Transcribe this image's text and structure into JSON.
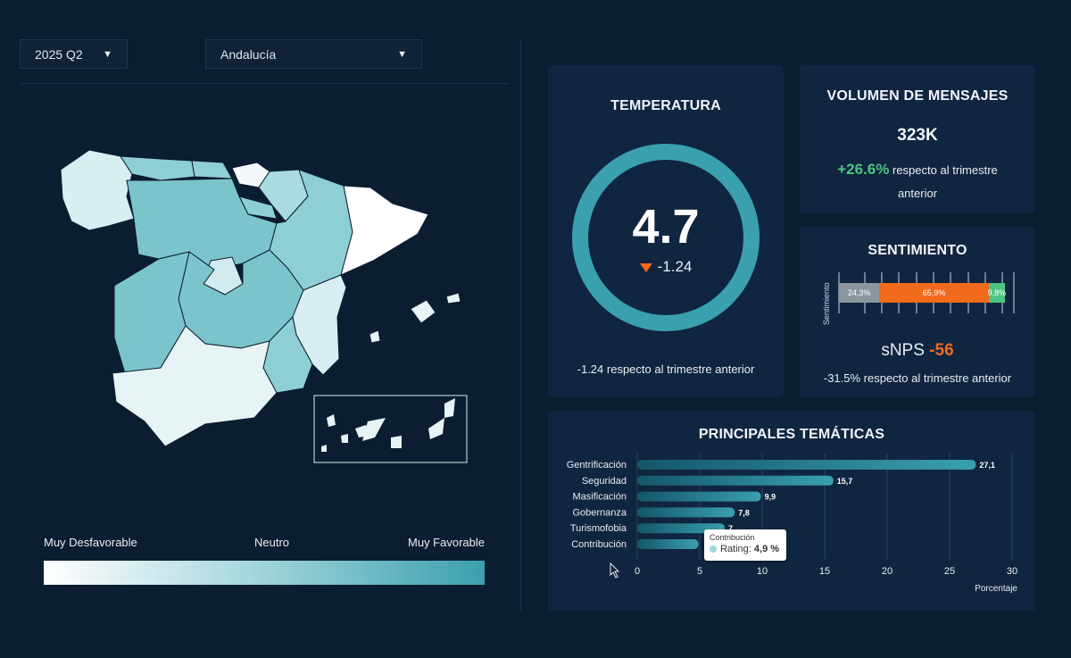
{
  "filters": {
    "quarter": "2025 Q2",
    "region": "Andalucía"
  },
  "legend": {
    "low": "Muy Desfavorable",
    "mid": "Neutro",
    "high": "Muy Favorable"
  },
  "temperatura": {
    "title": "TEMPERATURA",
    "value": "4.7",
    "delta": "-1.24",
    "note": "-1.24 respecto al trimestre anterior"
  },
  "volumen": {
    "title": "VOLUMEN DE MENSAJES",
    "value": "323K",
    "change": "+26.6%",
    "note_line1": "respecto al trimestre",
    "note_line2": "anterior"
  },
  "sentimiento": {
    "title": "SENTIMIENTO",
    "axis_label": "Sentimiento",
    "segments": [
      {
        "label": "24,3%",
        "value": 24.3,
        "color": "#8d969e"
      },
      {
        "label": "65,9%",
        "value": 65.9,
        "color": "#f26a1b"
      },
      {
        "label": "9,8%",
        "value": 9.8,
        "color": "#4bc584"
      }
    ],
    "snps_label": "sNPS",
    "snps_value": "-56",
    "note": "-31.5% respecto al trimestre anterior"
  },
  "tematicas": {
    "title": "PRINCIPALES TEMÁTICAS",
    "tooltip_title": "Contribución",
    "tooltip_label": "Rating:",
    "tooltip_value": "4,9 %"
  },
  "chart_data": {
    "type": "bar",
    "orientation": "horizontal",
    "categories": [
      "Gentrificación",
      "Seguridad",
      "Masificación",
      "Gobernanza",
      "Turismofobia",
      "Contribución"
    ],
    "values": [
      27.1,
      15.7,
      9.9,
      7.8,
      7,
      4.9
    ],
    "value_labels": [
      "27,1",
      "15,7",
      "9,9",
      "7,8",
      "7",
      ""
    ],
    "xlabel": "Porcentaje",
    "xlim": [
      0,
      30
    ],
    "ticks": [
      "0",
      "5",
      "10",
      "15",
      "20",
      "25",
      "30"
    ],
    "grid": true,
    "bar_color": "#3aa0ad"
  },
  "colors": {
    "background": "#0b1d30",
    "card": "#102540",
    "gauge": "#3aa0ad",
    "positive": "#4bc584",
    "negative": "#f26a1b"
  }
}
